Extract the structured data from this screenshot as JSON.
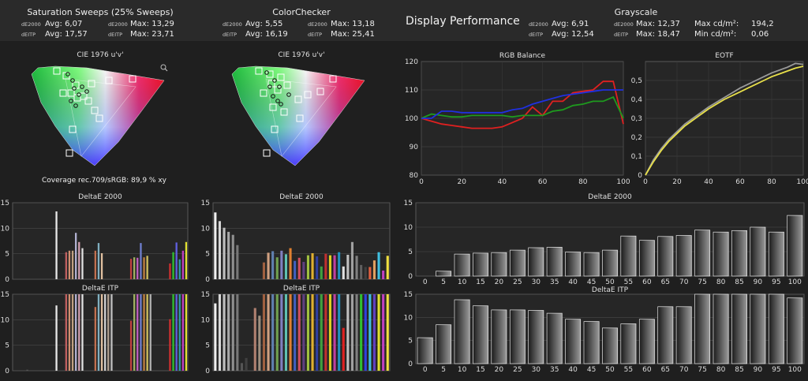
{
  "summary": {
    "saturation": {
      "title": "Saturation Sweeps (25% Sweeps)",
      "rows": [
        {
          "metric": "dE2000",
          "avg": "Avg: 6,07",
          "max": "Max: 13,29"
        },
        {
          "metric": "dEITP",
          "avg": "Avg: 17,57",
          "max": "Max: 23,71"
        }
      ]
    },
    "colorchecker": {
      "title": "ColorChecker",
      "rows": [
        {
          "metric": "dE2000",
          "avg": "Avg: 5,55",
          "max": "Max: 13,18"
        },
        {
          "metric": "dEITP",
          "avg": "Avg: 16,19",
          "max": "Max: 25,41"
        }
      ]
    },
    "display_title": "Display Performance",
    "grayscale": {
      "title": "Grayscale",
      "rows": [
        {
          "metric": "dE2000",
          "avg": "Avg: 6,91",
          "max": "Max: 12,37",
          "extra_label": "Max cd/m²:",
          "extra_value": "194,2"
        },
        {
          "metric": "dEITP",
          "avg": "Avg: 12,54",
          "max": "Max: 18,47",
          "extra_label": "Min cd/m²:",
          "extra_value": "0,06"
        }
      ]
    }
  },
  "colors": {
    "background": "#1f1f1f",
    "panel": "#262626",
    "red": "#e02020",
    "green": "#1e9a1e",
    "blue": "#2030e0",
    "eotf_target": "#9a9a9a",
    "eotf_measured": "#e8e04a"
  },
  "cie": {
    "title": "CIE 1976 u'v'",
    "coverage_text": "Coverage rec.709/sRGB:  89,9 % xy",
    "icon": "magnifier-icon"
  },
  "chart_data": [
    {
      "id": "rgb-balance",
      "type": "line",
      "title": "RGB Balance",
      "xlim": [
        0,
        100
      ],
      "ylim": [
        80,
        120
      ],
      "xticks": [
        0,
        20,
        40,
        60,
        80,
        100
      ],
      "yticks": [
        80,
        90,
        100,
        110,
        120
      ],
      "grid": true,
      "x": [
        0,
        5,
        10,
        15,
        20,
        25,
        30,
        35,
        40,
        45,
        50,
        55,
        60,
        65,
        70,
        75,
        80,
        85,
        90,
        95,
        100
      ],
      "series": [
        {
          "color": "red",
          "values": [
            100,
            99,
            98,
            97.5,
            97,
            96.5,
            96.5,
            96.5,
            97,
            98.5,
            100,
            104,
            101,
            106,
            106,
            109,
            109.5,
            110,
            113,
            113,
            98
          ]
        },
        {
          "color": "green",
          "values": [
            100,
            101.5,
            101,
            100.5,
            100.5,
            101,
            101,
            101,
            101,
            100.5,
            101,
            101,
            101,
            102.5,
            103,
            104.5,
            105,
            106,
            106,
            107.5,
            100
          ]
        },
        {
          "color": "blue",
          "values": [
            100,
            100,
            102.5,
            102.5,
            102,
            102,
            102,
            102,
            102,
            103,
            103.5,
            105,
            106,
            107,
            108,
            108.5,
            109,
            109.5,
            110,
            110,
            110
          ]
        }
      ]
    },
    {
      "id": "eotf",
      "type": "line",
      "title": "EOTF",
      "xlim": [
        0,
        100
      ],
      "ylim": [
        0,
        0.6
      ],
      "xticks": [
        0,
        20,
        40,
        60,
        80,
        100
      ],
      "yticks": [
        0,
        0.1,
        0.2,
        0.3,
        0.4,
        0.5
      ],
      "ytick_labels": [
        "0",
        "0,1",
        "0,2",
        "0,3",
        "0,4",
        "0,5"
      ],
      "grid": true,
      "x": [
        0,
        5,
        10,
        15,
        20,
        25,
        30,
        35,
        40,
        45,
        50,
        55,
        60,
        65,
        70,
        75,
        80,
        85,
        90,
        95,
        100
      ],
      "series": [
        {
          "color": "eotf_target",
          "values": [
            0,
            0.08,
            0.14,
            0.19,
            0.23,
            0.27,
            0.3,
            0.33,
            0.36,
            0.385,
            0.41,
            0.435,
            0.46,
            0.48,
            0.5,
            0.52,
            0.54,
            0.555,
            0.57,
            0.59,
            0.585
          ]
        },
        {
          "color": "eotf_measured",
          "values": [
            0,
            0.07,
            0.13,
            0.18,
            0.22,
            0.26,
            0.29,
            0.32,
            0.35,
            0.375,
            0.4,
            0.42,
            0.44,
            0.46,
            0.48,
            0.5,
            0.52,
            0.535,
            0.55,
            0.565,
            0.575
          ]
        }
      ]
    },
    {
      "id": "sat-de2000",
      "type": "bar",
      "title": "DeltaE 2000",
      "ylim": [
        0,
        15
      ],
      "yticks": [
        0,
        5,
        10,
        15
      ],
      "grid": true,
      "values": [
        0,
        0,
        0,
        0,
        0,
        0,
        0,
        0,
        0,
        0,
        0,
        0,
        0,
        13.3,
        0,
        0,
        5.3,
        5.6,
        5.6,
        9.1,
        7.3,
        6.1,
        0,
        0,
        0,
        5.6,
        7.1,
        5.1,
        0,
        0,
        0,
        0,
        0,
        0,
        0,
        0,
        4.0,
        4.3,
        4.2,
        7.1,
        4.3,
        4.6,
        0,
        0,
        0,
        0,
        0,
        0,
        3.1,
        5.3,
        7.2,
        3.9,
        5.6,
        7.3
      ],
      "colors": [
        "#333333",
        "#333333",
        "#333333",
        "#333333",
        "#333333",
        "#333333",
        "#333333",
        "#333333",
        "#333333",
        "#333333",
        "#333333",
        "#333333",
        "#333333",
        "#e8e8e8",
        "#333333",
        "#333333",
        "#c06060",
        "#d09070",
        "#c0a080",
        "#b0b0d0",
        "#d0a0b0",
        "#e0e0e0",
        "#333333",
        "#333333",
        "#333333",
        "#c07050",
        "#80b0c0",
        "#e0c0a0",
        "#333333",
        "#333333",
        "#333333",
        "#333333",
        "#333333",
        "#333333",
        "#333333",
        "#333333",
        "#c04040",
        "#a0b060",
        "#c060c0",
        "#7080d0",
        "#c08040",
        "#d0c060",
        "#333333",
        "#333333",
        "#333333",
        "#333333",
        "#333333",
        "#333333",
        "#d03030",
        "#30c030",
        "#6060e0",
        "#30a0a0",
        "#c040c0",
        "#e0e030"
      ]
    },
    {
      "id": "sat-deitp",
      "type": "bar",
      "title": "DeltaE ITP",
      "ylim": [
        0,
        15
      ],
      "yticks": [
        0,
        5,
        10,
        15
      ],
      "grid": true,
      "values": [
        0,
        0,
        0,
        0,
        0.2,
        0,
        0,
        0,
        0,
        0,
        0,
        0,
        0,
        12.8,
        0,
        0,
        15,
        15,
        15,
        15,
        15,
        15,
        0,
        0,
        0,
        12.5,
        15,
        15,
        15,
        15,
        15,
        0,
        0,
        0,
        0,
        0,
        9.8,
        15,
        15,
        15,
        15,
        15,
        15,
        0,
        0,
        0,
        0,
        0,
        10.1,
        15,
        15,
        15,
        15,
        15
      ],
      "colors": [
        "#333333",
        "#333333",
        "#333333",
        "#333333",
        "#555555",
        "#333333",
        "#333333",
        "#333333",
        "#333333",
        "#333333",
        "#333333",
        "#333333",
        "#333333",
        "#e8e8e8",
        "#333333",
        "#333333",
        "#c06060",
        "#d09070",
        "#c0a080",
        "#b0b0d0",
        "#d0a0b0",
        "#e0e0e0",
        "#333333",
        "#333333",
        "#333333",
        "#c07050",
        "#80b0c0",
        "#e0c0a0",
        "#d0d0d0",
        "#b0a090",
        "#c0c0c0",
        "#333333",
        "#333333",
        "#333333",
        "#333333",
        "#333333",
        "#c04040",
        "#a0b060",
        "#c060c0",
        "#7080d0",
        "#c08040",
        "#d0c060",
        "#b0b0b0",
        "#333333",
        "#333333",
        "#333333",
        "#333333",
        "#333333",
        "#d03030",
        "#30c030",
        "#6060e0",
        "#30a0a0",
        "#c040c0",
        "#e0e030"
      ]
    },
    {
      "id": "cc-de2000",
      "type": "bar",
      "title": "DeltaE 2000",
      "ylim": [
        0,
        15
      ],
      "yticks": [
        0,
        5,
        10,
        15
      ],
      "grid": true,
      "values": [
        13.1,
        11.4,
        10.1,
        9.3,
        8.7,
        6.7,
        0,
        0,
        0,
        0,
        0,
        3.3,
        5.2,
        5.5,
        4.3,
        5.6,
        4.9,
        6.1,
        3.6,
        4.2,
        3.4,
        4.7,
        5.1,
        4.5,
        2.5,
        5.0,
        4.7,
        4.7,
        5.3,
        2.5,
        4.8,
        7.3,
        4.6,
        2.8,
        2.4,
        2.4,
        3.7,
        5.3,
        1.7,
        4.6
      ],
      "colors": [
        "#f0f0f0",
        "#d8d8d8",
        "#c0c0c0",
        "#a8a8a8",
        "#909090",
        "#787878",
        "#333333",
        "#333333",
        "#333333",
        "#333333",
        "#333333",
        "#a06040",
        "#d0a080",
        "#6080b0",
        "#70a050",
        "#8080c0",
        "#60c0b0",
        "#e08030",
        "#4060c0",
        "#d05060",
        "#604080",
        "#a0c040",
        "#e0b030",
        "#3040a0",
        "#40a040",
        "#c03030",
        "#e0d020",
        "#c040a0",
        "#2090c0",
        "#e0e0e0",
        "#c0c0c0",
        "#a0a0a0",
        "#808080",
        "#606060",
        "#404040",
        "#e06040",
        "#e0a060",
        "#40c0e0",
        "#c040c0",
        "#f0e040"
      ]
    },
    {
      "id": "cc-deitp",
      "type": "bar",
      "title": "DeltaE ITP",
      "ylim": [
        0,
        15
      ],
      "yticks": [
        0,
        5,
        10,
        15
      ],
      "grid": true,
      "values": [
        13.2,
        15,
        15,
        15,
        15,
        15,
        1.5,
        2.5,
        0,
        12.3,
        10.8,
        15,
        15,
        15,
        15,
        15,
        15,
        15,
        15,
        15,
        15,
        15,
        15,
        15,
        15,
        15,
        15,
        15,
        15,
        8.4,
        15,
        15,
        15,
        15,
        15,
        15,
        15,
        15,
        15,
        15
      ],
      "colors": [
        "#f0f0f0",
        "#d8d8d8",
        "#c0c0c0",
        "#a8a8a8",
        "#909090",
        "#787878",
        "#555555",
        "#404040",
        "#333333",
        "#b08070",
        "#a09080",
        "#a06040",
        "#d0a080",
        "#6080b0",
        "#70a050",
        "#8080c0",
        "#60c0b0",
        "#e08030",
        "#4060c0",
        "#d05060",
        "#604080",
        "#a0c040",
        "#e0b030",
        "#3040a0",
        "#40a040",
        "#c03030",
        "#e0d020",
        "#c040a0",
        "#2090c0",
        "#e02020",
        "#c0c0c0",
        "#a0a0a0",
        "#808080",
        "#30c030",
        "#3040e0",
        "#40c0e0",
        "#6040c0",
        "#e0e030",
        "#c040c0",
        "#f0e040"
      ]
    },
    {
      "id": "gs-de2000",
      "type": "bar",
      "title": "DeltaE 2000",
      "ylim": [
        0,
        15
      ],
      "yticks": [
        0,
        5,
        10,
        15
      ],
      "grid": true,
      "categories": [
        "0",
        "5",
        "10",
        "15",
        "20",
        "25",
        "30",
        "35",
        "40",
        "45",
        "50",
        "55",
        "60",
        "65",
        "70",
        "75",
        "80",
        "85",
        "90",
        "95",
        "100"
      ],
      "values": [
        0,
        1.0,
        4.5,
        4.7,
        4.8,
        5.3,
        5.8,
        5.9,
        4.9,
        4.8,
        5.3,
        8.2,
        7.3,
        8.1,
        8.3,
        9.4,
        9.0,
        9.3,
        10.0,
        9.0,
        12.4
      ]
    },
    {
      "id": "gs-deitp",
      "type": "bar",
      "title": "DeltaE ITP",
      "ylim": [
        0,
        15
      ],
      "yticks": [
        0,
        5,
        10,
        15
      ],
      "grid": true,
      "categories": [
        "0",
        "5",
        "10",
        "15",
        "20",
        "25",
        "30",
        "35",
        "40",
        "45",
        "50",
        "55",
        "60",
        "65",
        "70",
        "75",
        "80",
        "85",
        "90",
        "95",
        "100"
      ],
      "values": [
        5.6,
        8.4,
        13.8,
        12.5,
        11.6,
        11.6,
        11.5,
        10.9,
        9.6,
        9.1,
        7.7,
        8.6,
        9.6,
        12.3,
        12.3,
        15,
        15,
        15,
        15,
        15,
        14.2
      ]
    }
  ]
}
